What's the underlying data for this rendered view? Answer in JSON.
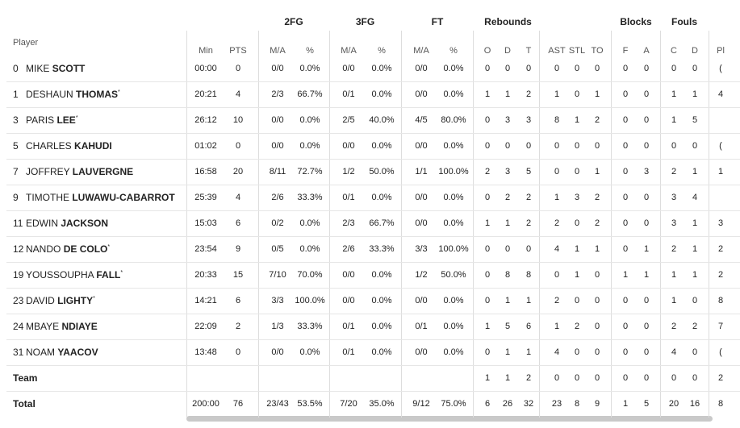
{
  "table": {
    "player_header": "Player",
    "groups": [
      {
        "label": "2FG",
        "from": 2,
        "to": 3
      },
      {
        "label": "3FG",
        "from": 4,
        "to": 5
      },
      {
        "label": "FT",
        "from": 6,
        "to": 7
      },
      {
        "label": "Rebounds",
        "from": 8,
        "to": 10
      },
      {
        "label": "Blocks",
        "from": 14,
        "to": 15
      },
      {
        "label": "Fouls",
        "from": 16,
        "to": 17
      }
    ],
    "columns": [
      "Min",
      "PTS",
      "M/A",
      "%",
      "M/A",
      "%",
      "M/A",
      "%",
      "O",
      "D",
      "T",
      "AST",
      "STL",
      "TO",
      "F",
      "A",
      "C",
      "D",
      "Pl"
    ],
    "rows": [
      {
        "number": "0",
        "first": "MIKE",
        "last": "SCOTT",
        "stats": [
          "00:00",
          "0",
          "0/0",
          "0.0%",
          "0/0",
          "0.0%",
          "0/0",
          "0.0%",
          "0",
          "0",
          "0",
          "0",
          "0",
          "0",
          "0",
          "0",
          "0",
          "0",
          "("
        ]
      },
      {
        "number": "1",
        "first": "DESHAUN",
        "last": "THOMAS",
        "marker": "*",
        "stats": [
          "20:21",
          "4",
          "2/3",
          "66.7%",
          "0/1",
          "0.0%",
          "0/0",
          "0.0%",
          "1",
          "1",
          "2",
          "1",
          "0",
          "1",
          "0",
          "0",
          "1",
          "1",
          "4"
        ]
      },
      {
        "number": "3",
        "first": "PARIS",
        "last": "LEE",
        "marker": "*",
        "stats": [
          "26:12",
          "10",
          "0/0",
          "0.0%",
          "2/5",
          "40.0%",
          "4/5",
          "80.0%",
          "0",
          "3",
          "3",
          "8",
          "1",
          "2",
          "0",
          "0",
          "1",
          "5",
          null
        ]
      },
      {
        "number": "5",
        "first": "CHARLES",
        "last": "KAHUDI",
        "stats": [
          "01:02",
          "0",
          "0/0",
          "0.0%",
          "0/0",
          "0.0%",
          "0/0",
          "0.0%",
          "0",
          "0",
          "0",
          "0",
          "0",
          "0",
          "0",
          "0",
          "0",
          "0",
          "("
        ]
      },
      {
        "number": "7",
        "first": "JOFFREY",
        "last": "LAUVERGNE",
        "stats": [
          "16:58",
          "20",
          "8/11",
          "72.7%",
          "1/2",
          "50.0%",
          "1/1",
          "100.0%",
          "2",
          "3",
          "5",
          "0",
          "0",
          "1",
          "0",
          "3",
          "2",
          "1",
          "1"
        ]
      },
      {
        "number": "9",
        "first": "TIMOTHE",
        "last": "LUWAWU-CABARROT",
        "stats": [
          "25:39",
          "4",
          "2/6",
          "33.3%",
          "0/1",
          "0.0%",
          "0/0",
          "0.0%",
          "0",
          "2",
          "2",
          "1",
          "3",
          "2",
          "0",
          "0",
          "3",
          "4",
          null
        ]
      },
      {
        "number": "11",
        "first": "EDWIN",
        "last": "JACKSON",
        "stats": [
          "15:03",
          "6",
          "0/2",
          "0.0%",
          "2/3",
          "66.7%",
          "0/0",
          "0.0%",
          "1",
          "1",
          "2",
          "2",
          "0",
          "2",
          "0",
          "0",
          "3",
          "1",
          "3"
        ]
      },
      {
        "number": "12",
        "first": "NANDO",
        "last": "DE COLO",
        "marker": "*",
        "stats": [
          "23:54",
          "9",
          "0/5",
          "0.0%",
          "2/6",
          "33.3%",
          "3/3",
          "100.0%",
          "0",
          "0",
          "0",
          "4",
          "1",
          "1",
          "0",
          "1",
          "2",
          "1",
          "2"
        ]
      },
      {
        "number": "19",
        "first": "YOUSSOUPHA",
        "last": "FALL",
        "marker": "*",
        "stats": [
          "20:33",
          "15",
          "7/10",
          "70.0%",
          "0/0",
          "0.0%",
          "1/2",
          "50.0%",
          "0",
          "8",
          "8",
          "0",
          "1",
          "0",
          "1",
          "1",
          "1",
          "1",
          "2"
        ]
      },
      {
        "number": "23",
        "first": "DAVID",
        "last": "LIGHTY",
        "marker": "*",
        "stats": [
          "14:21",
          "6",
          "3/3",
          "100.0%",
          "0/0",
          "0.0%",
          "0/0",
          "0.0%",
          "0",
          "1",
          "1",
          "2",
          "0",
          "0",
          "0",
          "0",
          "1",
          "0",
          "8"
        ]
      },
      {
        "number": "24",
        "first": "MBAYE",
        "last": "NDIAYE",
        "stats": [
          "22:09",
          "2",
          "1/3",
          "33.3%",
          "0/1",
          "0.0%",
          "0/1",
          "0.0%",
          "1",
          "5",
          "6",
          "1",
          "2",
          "0",
          "0",
          "0",
          "2",
          "2",
          "7"
        ]
      },
      {
        "number": "31",
        "first": "NOAM",
        "last": "YAACOV",
        "stats": [
          "13:48",
          "0",
          "0/0",
          "0.0%",
          "0/1",
          "0.0%",
          "0/0",
          "0.0%",
          "0",
          "1",
          "1",
          "4",
          "0",
          "0",
          "0",
          "0",
          "4",
          "0",
          "("
        ]
      },
      {
        "last": "Team",
        "stats": [
          null,
          null,
          null,
          null,
          null,
          null,
          null,
          null,
          "1",
          "1",
          "2",
          "0",
          "0",
          "0",
          "0",
          "0",
          "0",
          "0",
          "2"
        ]
      },
      {
        "last": "Total",
        "stats": [
          "200:00",
          "76",
          "23/43",
          "53.5%",
          "7/20",
          "35.0%",
          "9/12",
          "75.0%",
          "6",
          "26",
          "32",
          "23",
          "8",
          "9",
          "1",
          "5",
          "20",
          "16",
          "8"
        ]
      }
    ]
  }
}
